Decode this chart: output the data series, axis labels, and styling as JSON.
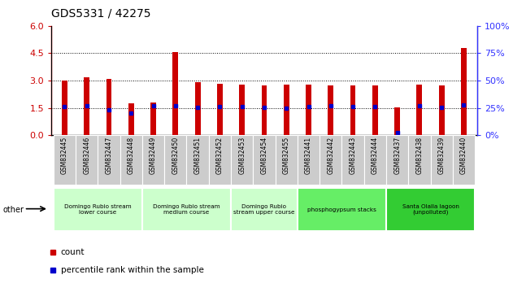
{
  "title": "GDS5331 / 42275",
  "samples": [
    "GSM832445",
    "GSM832446",
    "GSM832447",
    "GSM832448",
    "GSM832449",
    "GSM832450",
    "GSM832451",
    "GSM832452",
    "GSM832453",
    "GSM832454",
    "GSM832455",
    "GSM832441",
    "GSM832442",
    "GSM832443",
    "GSM832444",
    "GSM832437",
    "GSM832438",
    "GSM832439",
    "GSM832440"
  ],
  "count_values": [
    3.02,
    3.2,
    3.1,
    1.75,
    1.78,
    4.55,
    2.9,
    2.82,
    2.78,
    2.72,
    2.78,
    2.8,
    2.72,
    2.76,
    2.76,
    1.55,
    2.8,
    2.72,
    4.78
  ],
  "percentile_values": [
    1.6,
    1.62,
    1.38,
    1.22,
    1.62,
    1.62,
    1.52,
    1.6,
    1.6,
    1.52,
    1.5,
    1.6,
    1.62,
    1.6,
    1.58,
    0.15,
    1.62,
    1.52,
    1.65
  ],
  "ylim": [
    0,
    6
  ],
  "y2lim": [
    0,
    100
  ],
  "yticks": [
    0,
    1.5,
    3.0,
    4.5,
    6
  ],
  "y2ticks": [
    0,
    25,
    50,
    75,
    100
  ],
  "bar_color": "#cc0000",
  "dot_color": "#0000cc",
  "groups": [
    {
      "label": "Domingo Rubio stream\nlower course",
      "start": 0,
      "end": 4,
      "color": "#ccffcc"
    },
    {
      "label": "Domingo Rubio stream\nmedium course",
      "start": 4,
      "end": 8,
      "color": "#ccffcc"
    },
    {
      "label": "Domingo Rubio\nstream upper course",
      "start": 8,
      "end": 11,
      "color": "#ccffcc"
    },
    {
      "label": "phosphogypsum stacks",
      "start": 11,
      "end": 15,
      "color": "#66ee66"
    },
    {
      "label": "Santa Olalla lagoon\n(unpolluted)",
      "start": 15,
      "end": 19,
      "color": "#33cc33"
    }
  ],
  "legend_count_label": "count",
  "legend_pct_label": "percentile rank within the sample",
  "other_label": "other",
  "bar_width": 0.25,
  "tick_label_fontsize": 5.5,
  "title_fontsize": 10,
  "xtick_bg": "#cccccc",
  "y2tick_label_color": "#3333ff"
}
